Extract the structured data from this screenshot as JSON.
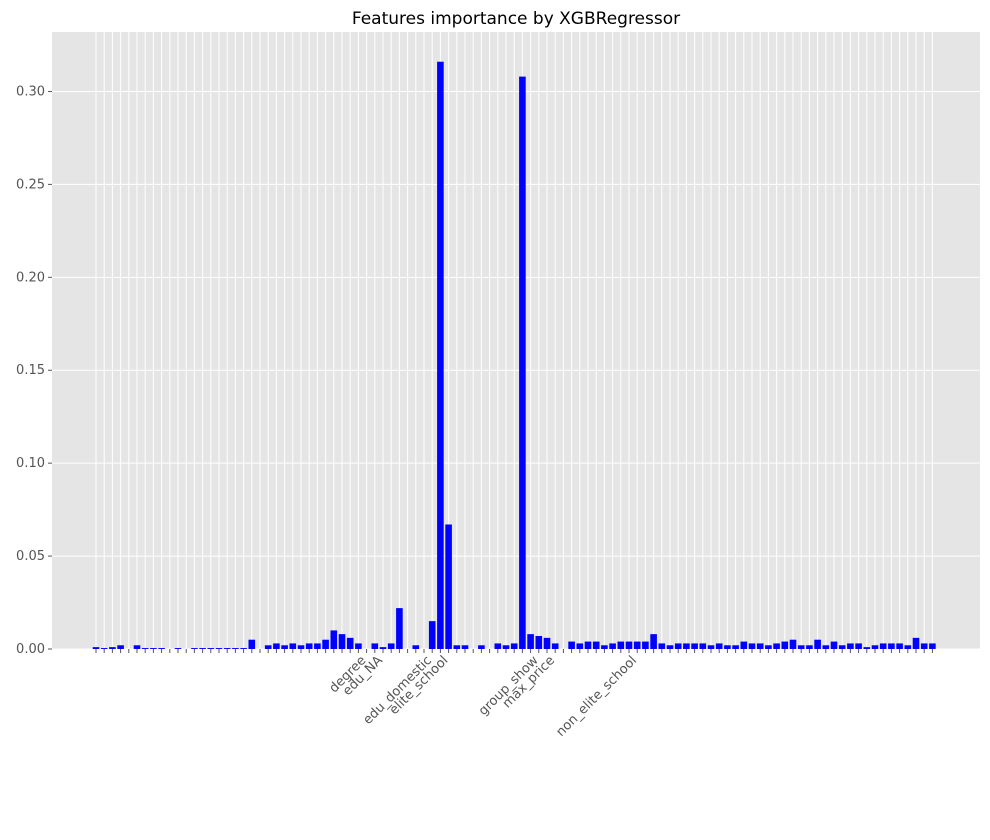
{
  "chart_data": {
    "type": "bar",
    "title": "Features importance by XGBRegressor",
    "categories": [
      null,
      null,
      null,
      null,
      null,
      null,
      null,
      null,
      null,
      null,
      null,
      null,
      null,
      null,
      null,
      null,
      null,
      null,
      null,
      null,
      null,
      null,
      null,
      null,
      null,
      null,
      null,
      null,
      null,
      null,
      null,
      null,
      null,
      "degree",
      null,
      "edu_NA",
      null,
      null,
      null,
      null,
      null,
      "edu_domestic",
      null,
      "elite_school",
      null,
      null,
      null,
      null,
      null,
      null,
      null,
      null,
      null,
      null,
      "group_show",
      null,
      "max_price",
      null,
      null,
      null,
      null,
      null,
      null,
      null,
      null,
      null,
      "non_elite_school",
      null,
      null,
      null,
      null,
      null,
      null,
      null,
      null,
      null,
      null,
      null,
      null,
      null,
      null,
      null,
      null,
      null,
      null,
      null,
      null,
      null,
      null,
      null,
      null,
      null,
      null,
      null,
      null,
      null,
      null,
      null,
      null,
      null,
      null,
      null,
      null
    ],
    "values": [
      0.001,
      0.0005,
      0.001,
      0.002,
      0,
      0.002,
      0.0005,
      0.0005,
      0.0005,
      0,
      0.0005,
      0,
      0.0005,
      0.0005,
      0.0005,
      0.0005,
      0.0005,
      0.0005,
      0.0005,
      0.005,
      0,
      0.002,
      0.003,
      0.002,
      0.003,
      0.002,
      0.003,
      0.003,
      0.005,
      0.01,
      0.008,
      0.006,
      0.003,
      0,
      0.003,
      0.001,
      0.003,
      0.022,
      0,
      0.002,
      0,
      0.015,
      0.316,
      0.067,
      0.002,
      0.002,
      0,
      0.002,
      0,
      0.003,
      0.002,
      0.003,
      0.308,
      0.008,
      0.007,
      0.006,
      0.003,
      0,
      0.004,
      0.003,
      0.004,
      0.004,
      0.002,
      0.003,
      0.004,
      0.004,
      0.004,
      0.004,
      0.008,
      0.003,
      0.002,
      0.003,
      0.003,
      0.003,
      0.003,
      0.002,
      0.003,
      0.002,
      0.002,
      0.004,
      0.003,
      0.003,
      0.002,
      0.003,
      0.004,
      0.005,
      0.002,
      0.002,
      0.005,
      0.002,
      0.004,
      0.002,
      0.003,
      0.003,
      0.001,
      0.002,
      0.003,
      0.003,
      0.003,
      0.002,
      0.006,
      0.003,
      0.003
    ],
    "color": "#0000ff",
    "ylim": [
      0,
      0.332
    ],
    "yticks": [
      {
        "value": 0,
        "label": "0.00"
      },
      0.05,
      {
        "value": 0.1,
        "label": "0.10"
      },
      0.15,
      {
        "value": 0.2,
        "label": "0.20"
      },
      0.25,
      {
        "value": 0.3,
        "label": "0.30"
      }
    ],
    "grid": true
  }
}
